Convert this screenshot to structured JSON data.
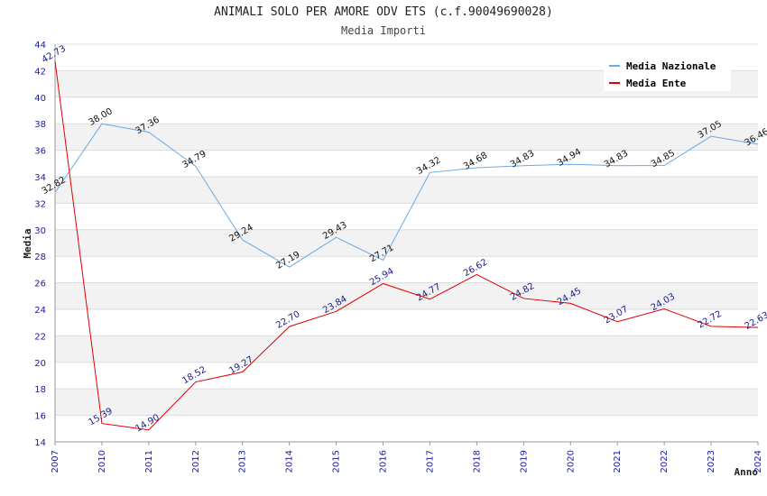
{
  "chart_data": {
    "type": "line",
    "title": "ANIMALI SOLO PER AMORE ODV ETS (c.f.90049690028)",
    "subtitle": "Media Importi",
    "xlabel": "Anno",
    "ylabel": "Media",
    "ylim": [
      14,
      44
    ],
    "ytick_step": 2,
    "grid": true,
    "legend_position": "top-right",
    "x": [
      "2007",
      "2010",
      "2011",
      "2012",
      "2013",
      "2014",
      "2015",
      "2016",
      "2017",
      "2018",
      "2019",
      "2020",
      "2021",
      "2022",
      "2023",
      "2024"
    ],
    "x_labels": [
      "2007",
      "2010",
      "2011",
      "2012",
      "2013",
      "2014",
      "2015",
      "2016",
      "2017",
      "2018",
      "2019",
      "2020",
      "2021",
      "2022",
      "2023",
      "2024"
    ],
    "series": [
      {
        "name": "Media Nazionale",
        "color": "#6aaae6",
        "values": [
          32.82,
          38.0,
          37.36,
          34.79,
          29.24,
          27.19,
          29.43,
          27.71,
          34.32,
          34.68,
          34.83,
          34.94,
          34.83,
          34.85,
          37.05,
          36.46
        ],
        "labels": [
          "32.82",
          "38.00",
          "37.36",
          "34.79",
          "29.24",
          "27.19",
          "29.43",
          "27.71",
          "34.32",
          "34.68",
          "34.83",
          "34.94",
          "34.83",
          "34.85",
          "37.05",
          "36.46"
        ]
      },
      {
        "name": "Media Ente",
        "color": "#e00000",
        "values": [
          42.73,
          15.39,
          14.9,
          18.52,
          19.27,
          22.7,
          23.84,
          25.94,
          24.77,
          26.62,
          24.82,
          24.45,
          23.07,
          24.03,
          22.72,
          22.63
        ],
        "labels": [
          "42.73",
          "15.39",
          "14.90",
          "18.52",
          "19.27",
          "22.70",
          "23.84",
          "25.94",
          "24.77",
          "26.62",
          "24.82",
          "24.45",
          "23.07",
          "24.03",
          "22.72",
          "22.63"
        ]
      }
    ]
  }
}
